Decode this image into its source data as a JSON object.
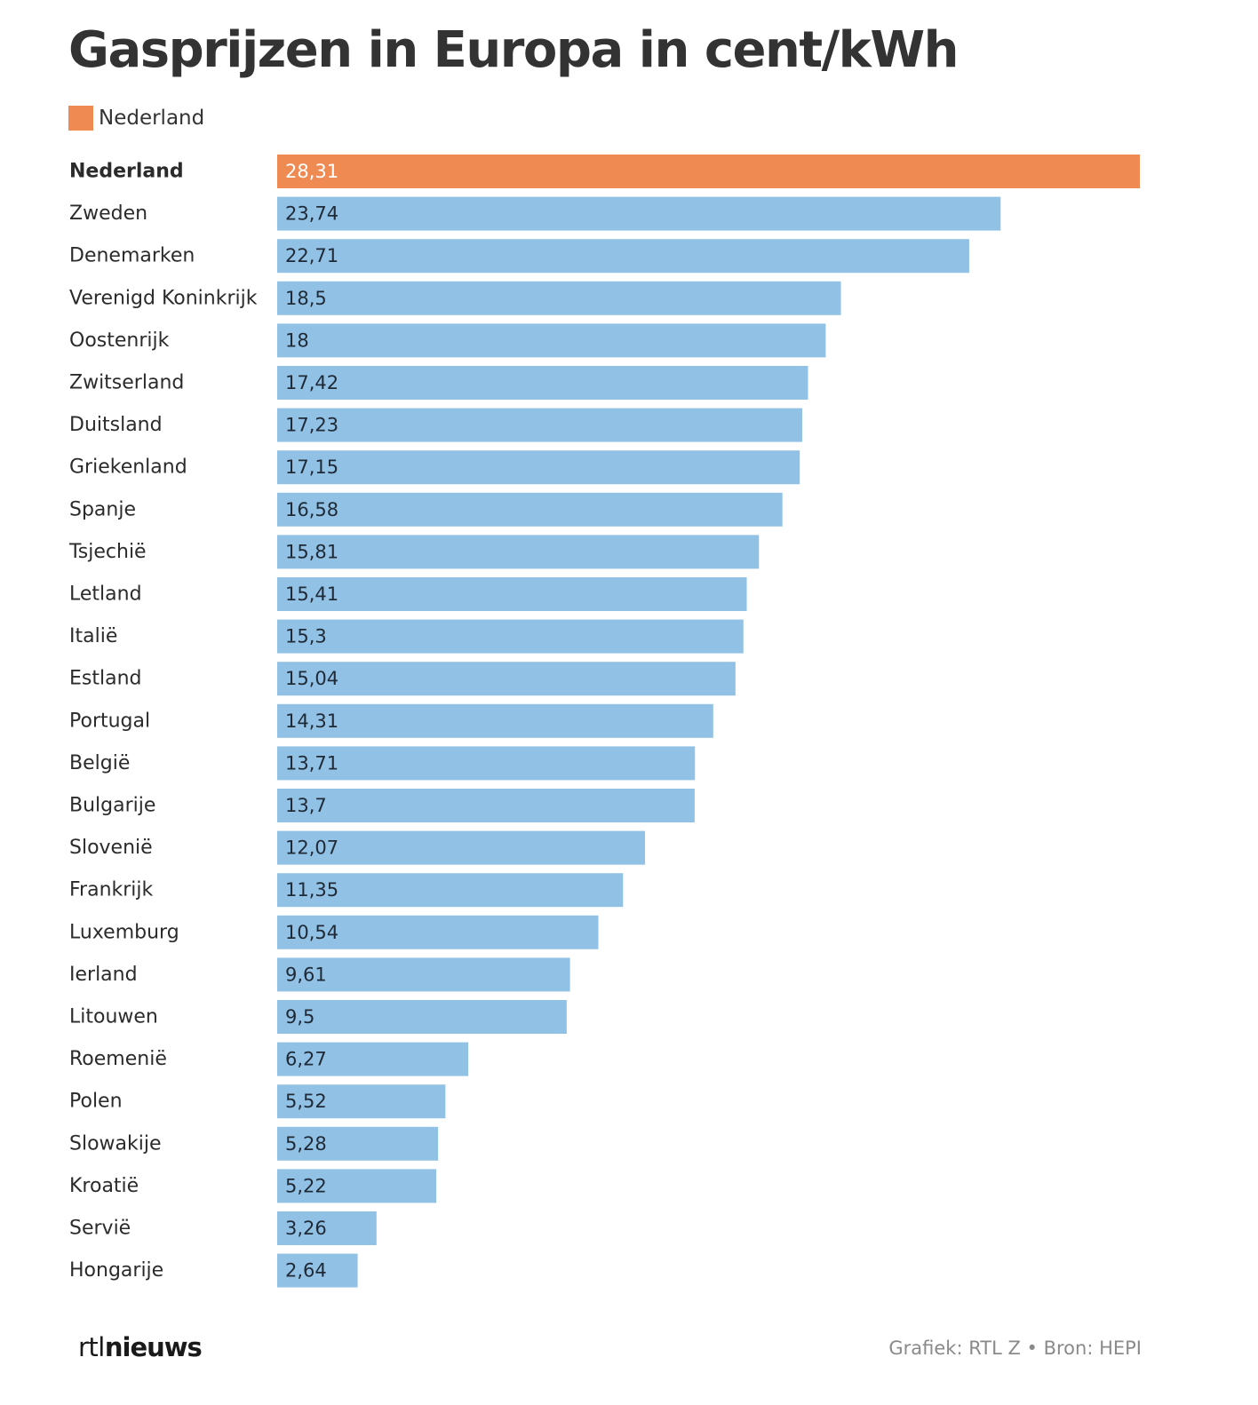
{
  "title": "Gasprijzen in Europa in cent/kWh",
  "legend": {
    "label": "Nederland",
    "color": "#ee8a52"
  },
  "colors": {
    "highlight": "#ee8a52",
    "bar": "#91c1e5",
    "value_text": "#1f2a36",
    "value_text_highlight": "#ffffff"
  },
  "chart_data": {
    "type": "bar",
    "orientation": "horizontal",
    "title": "Gasprijzen in Europa in cent/kWh",
    "highlight": "Nederland",
    "xlim": [
      0,
      28.31
    ],
    "categories": [
      "Nederland",
      "Zweden",
      "Denemarken",
      "Verenigd Koninkrijk",
      "Oostenrijk",
      "Zwitserland",
      "Duitsland",
      "Griekenland",
      "Spanje",
      "Tsjechië",
      "Letland",
      "Italië",
      "Estland",
      "Portugal",
      "België",
      "Bulgarije",
      "Slovenië",
      "Frankrijk",
      "Luxemburg",
      "Ierland",
      "Litouwen",
      "Roemenië",
      "Polen",
      "Slowakije",
      "Kroatië",
      "Servië",
      "Hongarije"
    ],
    "values": [
      28.31,
      23.74,
      22.71,
      18.5,
      18,
      17.42,
      17.23,
      17.15,
      16.58,
      15.81,
      15.41,
      15.3,
      15.04,
      14.31,
      13.71,
      13.7,
      12.07,
      11.35,
      10.54,
      9.61,
      9.5,
      6.27,
      5.52,
      5.28,
      5.22,
      3.26,
      2.64
    ],
    "value_labels": [
      "28,31",
      "23,74",
      "22,71",
      "18,5",
      "18",
      "17,42",
      "17,23",
      "17,15",
      "16,58",
      "15,81",
      "15,41",
      "15,3",
      "15,04",
      "14,31",
      "13,71",
      "13,7",
      "12,07",
      "11,35",
      "10,54",
      "9,61",
      "9,5",
      "6,27",
      "5,52",
      "5,28",
      "5,22",
      "3,26",
      "2,64"
    ]
  },
  "footer": {
    "logo_light": "rtl",
    "logo_bold": "nieuws",
    "credit": "Grafiek: RTL Z • Bron: HEPI"
  }
}
